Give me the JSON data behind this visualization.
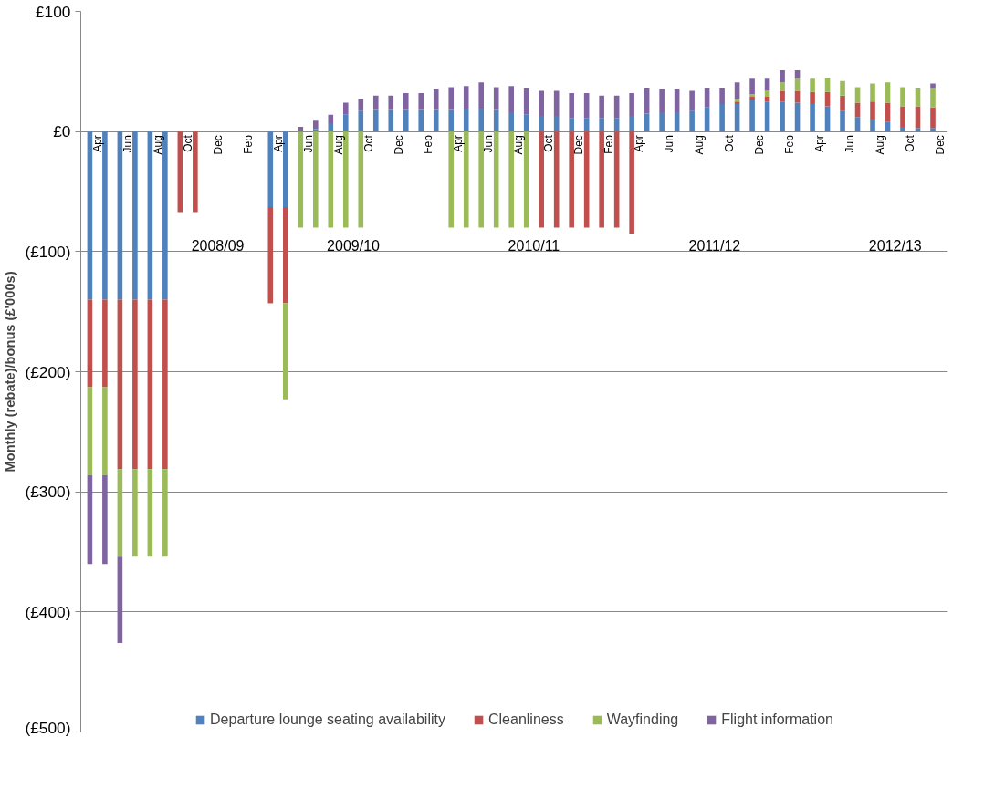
{
  "chart_data": {
    "type": "bar",
    "stacked": true,
    "ylabel": "Monthly (rebate)/bonus (£'000s)",
    "categories": [
      "Apr",
      null,
      "Jun",
      null,
      "Aug",
      null,
      "Oct",
      null,
      "Dec",
      null,
      "Feb",
      null,
      "Apr",
      null,
      "Jun",
      null,
      "Aug",
      null,
      "Oct",
      null,
      "Dec",
      null,
      "Feb",
      null,
      "Apr",
      null,
      "Jun",
      null,
      "Aug",
      null,
      "Oct",
      null,
      "Dec",
      null,
      "Feb",
      null,
      "Apr",
      null,
      "Jun",
      null,
      "Aug",
      null,
      "Oct",
      null,
      "Dec",
      null,
      "Feb",
      null,
      "Apr",
      null,
      "Jun",
      null,
      "Aug",
      null,
      "Oct",
      null,
      "Dec"
    ],
    "annotations": [
      "2008/09",
      "2009/10",
      "2010/11",
      "2011/12",
      "2012/13"
    ],
    "series": [
      {
        "name": "Departure lounge seating availability",
        "color": "#4f81bd",
        "values": [
          -140,
          -140,
          -140,
          -140,
          -140,
          -140,
          null,
          null,
          null,
          null,
          null,
          null,
          -63,
          -63,
          null,
          2,
          7,
          14,
          17,
          18,
          18,
          18,
          18,
          18,
          18,
          19,
          19,
          18,
          16,
          14,
          13,
          13,
          11,
          11,
          11,
          11,
          13,
          15,
          16,
          16,
          17,
          20,
          23,
          23,
          26,
          25,
          25,
          24,
          23,
          21,
          17,
          12,
          10,
          8,
          4,
          3,
          3
        ]
      },
      {
        "name": "Cleanliness",
        "color": "#c0504d",
        "values": [
          -73,
          -73,
          -141,
          -141,
          -141,
          -141,
          -67,
          -67,
          null,
          null,
          null,
          null,
          -80,
          -80,
          null,
          null,
          null,
          null,
          null,
          null,
          null,
          null,
          null,
          null,
          null,
          null,
          null,
          null,
          null,
          null,
          -80,
          -80,
          -80,
          -80,
          -80,
          -80,
          -85,
          null,
          null,
          null,
          null,
          null,
          null,
          2,
          3,
          4,
          9,
          10,
          10,
          12,
          13,
          12,
          15,
          16,
          17,
          18,
          17
        ]
      },
      {
        "name": "Wayfinding",
        "color": "#9bbb59",
        "values": [
          -73,
          -73,
          -73,
          -73,
          -73,
          -73,
          null,
          null,
          null,
          null,
          null,
          null,
          null,
          -80,
          -80,
          -80,
          -80,
          -80,
          -80,
          null,
          null,
          null,
          null,
          null,
          -80,
          -80,
          -80,
          -80,
          -80,
          -80,
          null,
          null,
          null,
          null,
          null,
          null,
          null,
          null,
          null,
          null,
          null,
          null,
          null,
          2,
          2,
          5,
          7,
          10,
          11,
          12,
          12,
          13,
          15,
          17,
          16,
          15,
          16
        ]
      },
      {
        "name": "Flight information",
        "color": "#8064a2",
        "values": [
          -74,
          -74,
          -72,
          null,
          null,
          null,
          null,
          null,
          null,
          null,
          null,
          null,
          null,
          null,
          4,
          7,
          7,
          10,
          10,
          12,
          12,
          14,
          14,
          17,
          19,
          19,
          22,
          19,
          22,
          22,
          21,
          21,
          21,
          21,
          19,
          19,
          19,
          21,
          19,
          19,
          17,
          16,
          13,
          14,
          13,
          10,
          10,
          7,
          null,
          null,
          null,
          null,
          null,
          null,
          null,
          null,
          4
        ]
      }
    ],
    "ylim": [
      -500,
      100
    ],
    "yticks": [
      {
        "value": 100,
        "label": "£100"
      },
      {
        "value": 0,
        "label": "£0"
      },
      {
        "value": -100,
        "label": "(£100)"
      },
      {
        "value": -200,
        "label": "(£200)"
      },
      {
        "value": -300,
        "label": "(£300)"
      },
      {
        "value": -400,
        "label": "(£400)"
      },
      {
        "value": -500,
        "label": "(£500)"
      }
    ],
    "grid": "y",
    "legend": "bottom"
  }
}
